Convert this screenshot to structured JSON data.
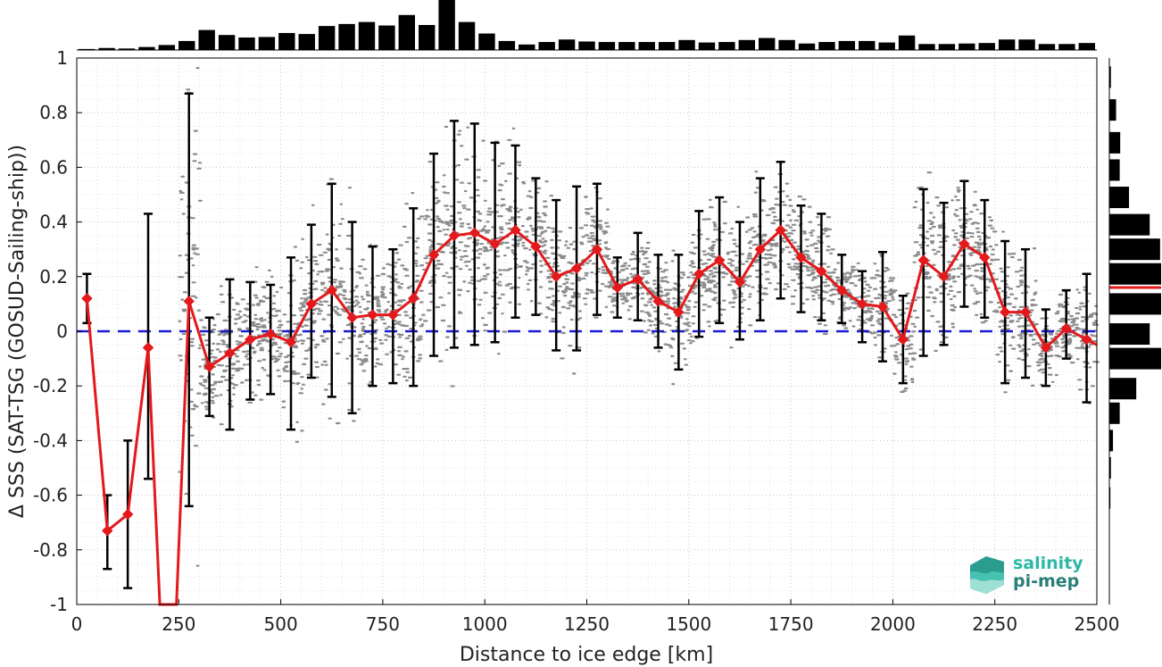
{
  "chart_data": {
    "type": "line",
    "xlabel": "Distance to ice edge [km]",
    "ylabel": "Δ SSS (SAT-TSG (GOSUD-Sailing-ship))",
    "xlim": [
      0,
      2500
    ],
    "ylim": [
      -1,
      1
    ],
    "x_ticks": [
      "0",
      "250",
      "500",
      "750",
      "1000",
      "1250",
      "1500",
      "1750",
      "2000",
      "2250",
      "2500"
    ],
    "y_ticks": [
      "1",
      "0.8",
      "0.6",
      "0.4",
      "0.2",
      "0",
      "-0.2",
      "-0.4",
      "-0.6",
      "-0.8",
      "-1"
    ],
    "grid": true,
    "reference_line": {
      "y": 0,
      "style": "dashed",
      "color": "#1a1ad6"
    },
    "series": [
      {
        "style": "red line with diamond markers and black error bars (±1 std)",
        "color": "#e3191c",
        "x": [
          25,
          75,
          125,
          175,
          225,
          275,
          325,
          375,
          425,
          475,
          525,
          575,
          625,
          675,
          725,
          775,
          825,
          875,
          925,
          975,
          1025,
          1075,
          1125,
          1175,
          1225,
          1275,
          1325,
          1375,
          1425,
          1475,
          1525,
          1575,
          1625,
          1675,
          1725,
          1775,
          1825,
          1875,
          1925,
          1975,
          2025,
          2075,
          2125,
          2175,
          2225,
          2275,
          2325,
          2375,
          2425,
          2475
        ],
        "y": [
          0.12,
          -0.73,
          -0.67,
          -0.06,
          -1.7,
          0.11,
          -0.13,
          -0.08,
          -0.03,
          -0.01,
          -0.04,
          0.1,
          0.15,
          0.05,
          0.06,
          0.06,
          0.12,
          0.28,
          0.35,
          0.36,
          0.32,
          0.37,
          0.31,
          0.2,
          0.23,
          0.3,
          0.16,
          0.19,
          0.11,
          0.07,
          0.21,
          0.26,
          0.18,
          0.3,
          0.37,
          0.27,
          0.22,
          0.15,
          0.1,
          0.09,
          -0.03,
          0.26,
          0.2,
          0.32,
          0.27,
          0.07,
          0.07,
          -0.06,
          0.01,
          -0.03
        ],
        "err_low": [
          0.03,
          -0.87,
          -0.94,
          -0.54,
          null,
          -0.64,
          -0.31,
          -0.36,
          -0.25,
          -0.23,
          -0.36,
          -0.17,
          -0.24,
          -0.3,
          -0.2,
          -0.19,
          -0.2,
          -0.09,
          -0.06,
          -0.05,
          -0.04,
          0.05,
          0.06,
          -0.07,
          -0.07,
          0.06,
          0.05,
          0.04,
          -0.06,
          -0.14,
          -0.02,
          0.03,
          -0.03,
          0.04,
          0.12,
          0.07,
          0.04,
          0.03,
          -0.04,
          -0.11,
          -0.19,
          -0.09,
          -0.05,
          0.09,
          0.05,
          -0.19,
          -0.17,
          -0.2,
          -0.1,
          -0.26
        ],
        "err_high": [
          0.21,
          -0.6,
          -0.4,
          0.43,
          null,
          0.87,
          0.05,
          0.19,
          0.18,
          0.17,
          0.27,
          0.39,
          0.54,
          0.4,
          0.31,
          0.3,
          0.45,
          0.65,
          0.77,
          0.76,
          0.69,
          0.68,
          0.56,
          0.48,
          0.53,
          0.54,
          0.27,
          0.36,
          0.28,
          0.28,
          0.44,
          0.49,
          0.4,
          0.56,
          0.62,
          0.46,
          0.43,
          0.28,
          0.22,
          0.29,
          0.13,
          0.52,
          0.47,
          0.55,
          0.48,
          0.33,
          0.3,
          0.08,
          0.15,
          0.21
        ]
      }
    ],
    "top_histogram": {
      "orientation": "vertical bars over distance bins",
      "color": "#000000",
      "relative_counts": [
        0.02,
        0.04,
        0.03,
        0.06,
        0.1,
        0.18,
        0.4,
        0.3,
        0.25,
        0.26,
        0.34,
        0.32,
        0.48,
        0.52,
        0.56,
        0.49,
        0.7,
        0.5,
        1.0,
        0.56,
        0.33,
        0.18,
        0.11,
        0.16,
        0.21,
        0.17,
        0.16,
        0.16,
        0.16,
        0.16,
        0.2,
        0.15,
        0.16,
        0.2,
        0.24,
        0.2,
        0.13,
        0.16,
        0.18,
        0.18,
        0.15,
        0.29,
        0.12,
        0.12,
        0.13,
        0.14,
        0.21,
        0.21,
        0.12,
        0.12,
        0.14
      ]
    },
    "right_histogram": {
      "orientation": "horizontal bars over ΔSSS bins",
      "color": "#000000",
      "bin_centers": [
        0.93,
        0.81,
        0.69,
        0.59,
        0.49,
        0.39,
        0.3,
        0.21,
        0.1,
        -0.01,
        -0.1,
        -0.21,
        -0.3,
        -0.4,
        -0.5,
        -0.61
      ],
      "relative_counts": [
        0.03,
        0.13,
        0.21,
        0.2,
        0.38,
        0.78,
        0.98,
        1.0,
        1.0,
        0.78,
        1.0,
        0.52,
        0.2,
        0.07,
        0.03,
        0.02
      ],
      "median_marker": {
        "y": 0.16,
        "color": "#e3191c"
      }
    }
  },
  "logo": {
    "line1": "salinity",
    "line2": "pi-mep",
    "colors": [
      "#2bb8a8",
      "#2a7f78"
    ]
  }
}
